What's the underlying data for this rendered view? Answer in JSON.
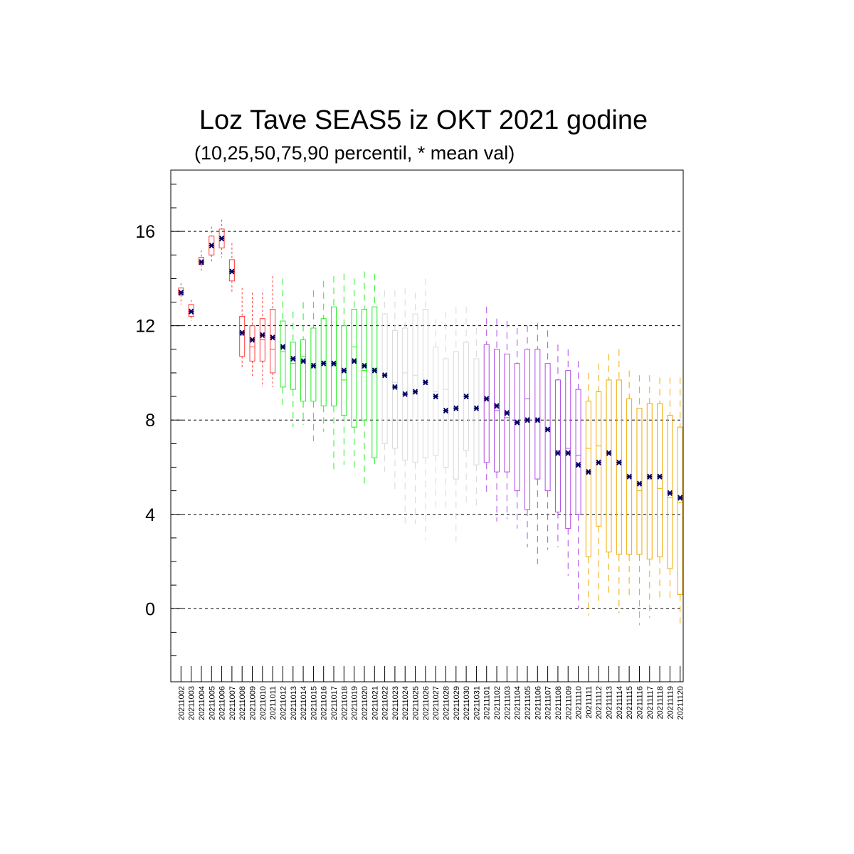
{
  "chart_data": {
    "type": "boxplot",
    "title": "Loz Tave SEAS5 iz OKT 2021 godine",
    "subtitle": "(10,25,50,75,90 percentil, * mean val)",
    "xlabel": "",
    "ylabel": "",
    "ylim": [
      -3.1,
      18.6
    ],
    "yticks": [
      0,
      4,
      8,
      12,
      16
    ],
    "grid": "horizontal dashed at major ticks",
    "mean_marker_color": "#000066",
    "series_colors": {
      "october_first_week": "#ff3b3b",
      "october_2": "#22ee22",
      "october_3": "#d9d9d9",
      "november_1": "#b04be6",
      "november_2": "#f2a900"
    },
    "categories": [
      "20211002",
      "20211003",
      "20211004",
      "20211005",
      "20211006",
      "20211007",
      "20211008",
      "20211009",
      "20211010",
      "20211011",
      "20211012",
      "20211013",
      "20211014",
      "20211015",
      "20211016",
      "20211017",
      "20211018",
      "20211019",
      "20211020",
      "20211021",
      "20211022",
      "20211023",
      "20211024",
      "20211025",
      "20211026",
      "20211027",
      "20211028",
      "20211029",
      "20211030",
      "20211031",
      "20211101",
      "20211102",
      "20211103",
      "20211104",
      "20211105",
      "20211106",
      "20211107",
      "20211108",
      "20211109",
      "20211110",
      "20211111",
      "20211112",
      "20211113",
      "20211114",
      "20211115",
      "20211116",
      "20211117",
      "20211118",
      "20211119",
      "20211120"
    ],
    "color_group": [
      0,
      0,
      0,
      0,
      0,
      0,
      0,
      0,
      0,
      0,
      1,
      1,
      1,
      1,
      1,
      1,
      1,
      1,
      1,
      1,
      2,
      2,
      2,
      2,
      2,
      2,
      2,
      2,
      2,
      2,
      3,
      3,
      3,
      3,
      3,
      3,
      3,
      3,
      3,
      3,
      4,
      4,
      4,
      4,
      4,
      4,
      4,
      4,
      4,
      4
    ],
    "p10": [
      12.9,
      12.2,
      14.3,
      14.7,
      14.9,
      13.4,
      10.2,
      9.8,
      9.4,
      9.4,
      8.6,
      7.7,
      7.8,
      7.1,
      7.5,
      5.7,
      6.1,
      5.8,
      5.3,
      6.0,
      5.8,
      4.9,
      3.6,
      3.6,
      2.9,
      4.1,
      4.3,
      2.7,
      4.5,
      4.3,
      4.8,
      3.7,
      3.8,
      3.4,
      2.6,
      1.9,
      2.5,
      2.6,
      1.4,
      0.0,
      -0.3,
      0.1,
      0.5,
      -0.2,
      0.5,
      -0.7,
      -0.4,
      0.3,
      0.4,
      -0.7
    ],
    "p25": [
      13.3,
      12.4,
      14.6,
      15.0,
      15.3,
      13.9,
      10.7,
      10.5,
      10.5,
      10.0,
      9.4,
      9.3,
      8.8,
      8.8,
      8.6,
      8.6,
      8.2,
      7.7,
      8.0,
      6.4,
      7.0,
      6.8,
      6.3,
      6.2,
      6.4,
      6.5,
      6.0,
      5.5,
      6.7,
      6.1,
      6.2,
      5.8,
      5.8,
      5.0,
      4.2,
      5.5,
      5.0,
      4.1,
      3.4,
      4.0,
      2.2,
      3.5,
      2.4,
      2.3,
      2.3,
      2.3,
      2.1,
      2.2,
      1.7,
      0.6
    ],
    "p50": [
      13.4,
      12.6,
      14.7,
      15.4,
      15.7,
      14.3,
      11.6,
      11.1,
      11.4,
      11.0,
      10.9,
      10.4,
      10.7,
      10.4,
      10.5,
      10.3,
      9.7,
      11.1,
      10.1,
      10.2,
      9.9,
      9.6,
      10.0,
      9.9,
      9.5,
      9.2,
      9.3,
      8.4,
      9.1,
      8.5,
      8.9,
      8.4,
      8.1,
      7.9,
      8.9,
      8.0,
      7.6,
      6.7,
      6.8,
      6.5,
      6.8,
      6.9,
      6.6,
      6.2,
      5.6,
      5.0,
      5.5,
      5.1,
      4.7,
      4.5
    ],
    "p75": [
      13.6,
      12.9,
      14.9,
      15.8,
      16.1,
      14.8,
      12.4,
      12.0,
      12.3,
      12.7,
      12.2,
      11.3,
      11.4,
      11.9,
      12.3,
      12.8,
      12.0,
      12.7,
      12.7,
      12.8,
      12.5,
      11.8,
      11.9,
      12.5,
      12.7,
      11.1,
      10.6,
      10.9,
      11.3,
      10.6,
      11.2,
      11.0,
      10.8,
      10.4,
      11.0,
      11.0,
      10.4,
      9.7,
      10.1,
      9.3,
      8.8,
      9.2,
      9.7,
      9.7,
      8.9,
      8.5,
      8.7,
      8.7,
      8.2,
      7.7
    ],
    "p90": [
      13.8,
      13.1,
      15.2,
      16.2,
      16.5,
      15.5,
      13.6,
      13.4,
      13.4,
      14.1,
      14.0,
      12.6,
      13.0,
      13.5,
      13.9,
      14.1,
      14.2,
      14.0,
      14.3,
      14.2,
      13.5,
      13.5,
      13.6,
      13.4,
      14.0,
      12.3,
      12.6,
      12.8,
      12.8,
      11.9,
      12.8,
      12.3,
      12.2,
      11.9,
      12.0,
      12.1,
      11.8,
      11.2,
      11.0,
      10.5,
      10.0,
      10.4,
      10.8,
      11.0,
      10.1,
      9.9,
      9.9,
      9.8,
      9.8,
      9.8
    ],
    "mean": [
      13.4,
      12.6,
      14.7,
      15.4,
      15.7,
      14.3,
      11.7,
      11.4,
      11.6,
      11.5,
      11.1,
      10.6,
      10.5,
      10.3,
      10.4,
      10.4,
      10.1,
      10.5,
      10.3,
      10.1,
      9.9,
      9.4,
      9.1,
      9.2,
      9.6,
      9.0,
      8.4,
      8.5,
      9.0,
      8.5,
      8.9,
      8.6,
      8.3,
      7.9,
      8.0,
      8.0,
      7.6,
      6.6,
      6.6,
      6.1,
      5.8,
      6.2,
      6.6,
      6.2,
      5.6,
      5.3,
      5.6,
      5.6,
      4.9,
      4.7
    ]
  }
}
